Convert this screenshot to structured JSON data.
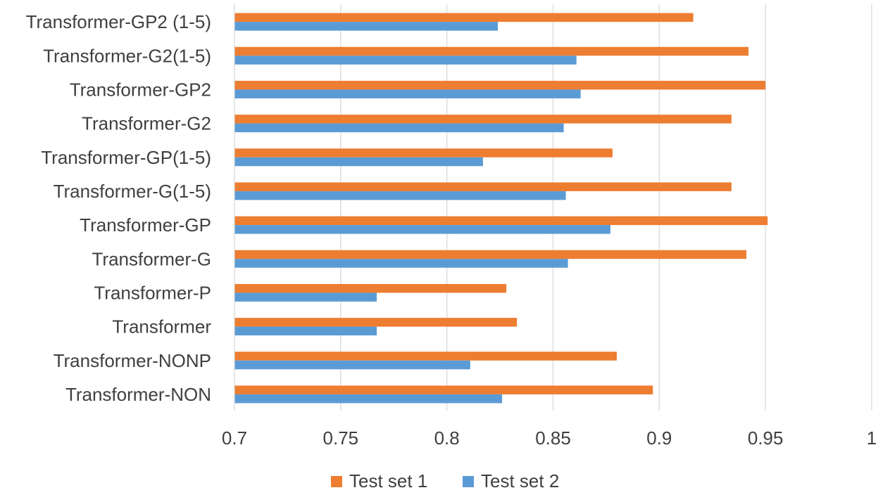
{
  "chart_data": {
    "type": "bar",
    "orientation": "horizontal",
    "categories": [
      "Transformer-GP2 (1-5)",
      "Transformer-G2(1-5)",
      "Transformer-GP2",
      "Transformer-G2",
      "Transformer-GP(1-5)",
      "Transformer-G(1-5)",
      "Transformer-GP",
      "Transformer-G",
      "Transformer-P",
      "Transformer",
      "Transformer-NONP",
      "Transformer-NON"
    ],
    "series": [
      {
        "name": "Test set 1",
        "color": "#ED7D31",
        "values": [
          0.916,
          0.942,
          0.95,
          0.934,
          0.878,
          0.934,
          0.951,
          0.941,
          0.828,
          0.833,
          0.88,
          0.897
        ]
      },
      {
        "name": "Test set 2",
        "color": "#5B9BD5",
        "values": [
          0.824,
          0.861,
          0.863,
          0.855,
          0.817,
          0.856,
          0.877,
          0.857,
          0.767,
          0.767,
          0.811,
          0.826
        ]
      }
    ],
    "xlim": [
      0.7,
      1.0
    ],
    "xticks": [
      "0.7",
      "0.75",
      "0.8",
      "0.85",
      "0.9",
      "0.95",
      "1"
    ],
    "grid": true,
    "legend_position": "bottom",
    "title": "",
    "xlabel": "",
    "ylabel": ""
  }
}
